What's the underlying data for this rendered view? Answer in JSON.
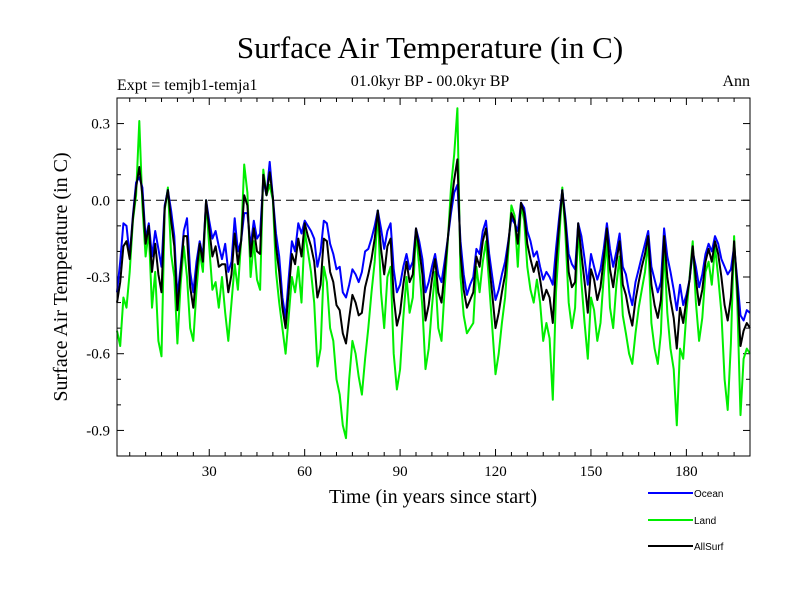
{
  "chart_data": {
    "type": "line",
    "title": "Surface Air Temperature (in C)",
    "subtitle": "01.0kyr BP - 00.0kyr BP",
    "left_label": "Expt = temjb1-temja1",
    "right_label": "Ann",
    "xlabel": "Time (in years since start)",
    "ylabel": "Surface Air Temperature (in C)",
    "xlim": [
      1,
      200
    ],
    "ylim": [
      -1.0,
      0.4
    ],
    "xticks": [
      30,
      60,
      90,
      120,
      150,
      180
    ],
    "xtick_labels": [
      "30",
      "60",
      "90",
      "120",
      "150",
      "180"
    ],
    "yticks": [
      0.3,
      0.0,
      -0.3,
      -0.6,
      -0.9
    ],
    "ytick_labels": [
      "0.3",
      "0.0",
      "-0.3",
      "-0.6",
      "-0.9"
    ],
    "zero_line": true,
    "legend": "bottom-right",
    "series": [
      {
        "name": "Ocean",
        "color": "#0000ff",
        "values": [
          -0.36,
          -0.24,
          -0.09,
          -0.1,
          -0.22,
          -0.06,
          0.07,
          0.09,
          0.05,
          -0.15,
          -0.09,
          -0.22,
          -0.12,
          -0.19,
          -0.26,
          -0.02,
          0.04,
          -0.04,
          -0.14,
          -0.38,
          -0.26,
          -0.12,
          -0.07,
          -0.28,
          -0.36,
          -0.24,
          -0.16,
          -0.22,
          0.0,
          -0.08,
          -0.15,
          -0.12,
          -0.18,
          -0.23,
          -0.17,
          -0.28,
          -0.24,
          -0.07,
          -0.2,
          -0.16,
          -0.05,
          -0.05,
          -0.18,
          -0.08,
          -0.15,
          -0.13,
          0.08,
          0.02,
          0.15,
          0.01,
          -0.13,
          -0.22,
          -0.38,
          -0.46,
          -0.3,
          -0.16,
          -0.2,
          -0.09,
          -0.13,
          -0.08,
          -0.1,
          -0.12,
          -0.15,
          -0.26,
          -0.2,
          -0.08,
          -0.09,
          -0.17,
          -0.21,
          -0.27,
          -0.26,
          -0.36,
          -0.38,
          -0.33,
          -0.27,
          -0.29,
          -0.32,
          -0.28,
          -0.2,
          -0.19,
          -0.15,
          -0.1,
          -0.04,
          -0.11,
          -0.19,
          -0.12,
          -0.09,
          -0.27,
          -0.36,
          -0.33,
          -0.26,
          -0.21,
          -0.27,
          -0.24,
          -0.11,
          -0.16,
          -0.23,
          -0.36,
          -0.32,
          -0.26,
          -0.21,
          -0.29,
          -0.32,
          -0.24,
          -0.15,
          -0.05,
          0.03,
          0.06,
          -0.16,
          -0.29,
          -0.37,
          -0.33,
          -0.3,
          -0.19,
          -0.21,
          -0.12,
          -0.08,
          -0.21,
          -0.3,
          -0.39,
          -0.35,
          -0.29,
          -0.24,
          -0.16,
          -0.07,
          -0.09,
          -0.12,
          -0.01,
          -0.03,
          -0.12,
          -0.16,
          -0.22,
          -0.2,
          -0.26,
          -0.31,
          -0.28,
          -0.3,
          -0.33,
          -0.19,
          -0.07,
          0.04,
          -0.07,
          -0.21,
          -0.25,
          -0.27,
          -0.09,
          -0.14,
          -0.23,
          -0.33,
          -0.21,
          -0.26,
          -0.31,
          -0.27,
          -0.19,
          -0.09,
          -0.19,
          -0.26,
          -0.2,
          -0.13,
          -0.26,
          -0.29,
          -0.36,
          -0.41,
          -0.32,
          -0.27,
          -0.22,
          -0.17,
          -0.12,
          -0.26,
          -0.31,
          -0.36,
          -0.32,
          -0.11,
          -0.22,
          -0.28,
          -0.35,
          -0.43,
          -0.33,
          -0.41,
          -0.37,
          -0.31,
          -0.2,
          -0.26,
          -0.34,
          -0.29,
          -0.21,
          -0.17,
          -0.2,
          -0.14,
          -0.17,
          -0.23,
          -0.26,
          -0.29,
          -0.27,
          -0.18,
          -0.31,
          -0.45,
          -0.47,
          -0.43,
          -0.44
        ]
      },
      {
        "name": "Land",
        "color": "#00ee00",
        "values": [
          -0.51,
          -0.57,
          -0.38,
          -0.42,
          -0.28,
          -0.08,
          0.02,
          0.31,
          -0.02,
          -0.22,
          -0.12,
          -0.42,
          -0.28,
          -0.55,
          -0.61,
          -0.04,
          0.05,
          -0.21,
          -0.3,
          -0.56,
          -0.33,
          -0.18,
          -0.3,
          -0.5,
          -0.55,
          -0.35,
          -0.2,
          -0.28,
          0.0,
          -0.18,
          -0.35,
          -0.32,
          -0.42,
          -0.3,
          -0.44,
          -0.55,
          -0.4,
          -0.25,
          -0.35,
          -0.16,
          0.14,
          0.03,
          -0.3,
          -0.16,
          -0.31,
          -0.35,
          0.12,
          0.02,
          0.06,
          0.0,
          -0.28,
          -0.4,
          -0.5,
          -0.6,
          -0.45,
          -0.3,
          -0.36,
          -0.26,
          -0.4,
          -0.12,
          -0.2,
          -0.28,
          -0.4,
          -0.65,
          -0.58,
          -0.26,
          -0.32,
          -0.5,
          -0.55,
          -0.7,
          -0.76,
          -0.88,
          -0.93,
          -0.7,
          -0.55,
          -0.6,
          -0.69,
          -0.76,
          -0.62,
          -0.5,
          -0.36,
          -0.24,
          -0.04,
          -0.36,
          -0.5,
          -0.3,
          -0.26,
          -0.6,
          -0.74,
          -0.66,
          -0.46,
          -0.3,
          -0.44,
          -0.38,
          -0.12,
          -0.26,
          -0.42,
          -0.66,
          -0.58,
          -0.42,
          -0.28,
          -0.5,
          -0.55,
          -0.35,
          -0.16,
          0.05,
          0.18,
          0.36,
          -0.3,
          -0.45,
          -0.52,
          -0.5,
          -0.48,
          -0.26,
          -0.36,
          -0.24,
          -0.16,
          -0.33,
          -0.5,
          -0.68,
          -0.6,
          -0.48,
          -0.38,
          -0.2,
          -0.02,
          -0.06,
          -0.26,
          -0.02,
          -0.08,
          -0.26,
          -0.35,
          -0.4,
          -0.31,
          -0.4,
          -0.55,
          -0.48,
          -0.54,
          -0.78,
          -0.36,
          -0.16,
          0.05,
          -0.14,
          -0.4,
          -0.5,
          -0.42,
          -0.1,
          -0.32,
          -0.48,
          -0.62,
          -0.38,
          -0.43,
          -0.55,
          -0.48,
          -0.3,
          -0.16,
          -0.42,
          -0.5,
          -0.33,
          -0.22,
          -0.45,
          -0.52,
          -0.6,
          -0.64,
          -0.52,
          -0.42,
          -0.35,
          -0.28,
          -0.16,
          -0.48,
          -0.58,
          -0.64,
          -0.52,
          -0.18,
          -0.44,
          -0.58,
          -0.66,
          -0.88,
          -0.58,
          -0.62,
          -0.44,
          -0.3,
          -0.16,
          -0.4,
          -0.55,
          -0.46,
          -0.28,
          -0.24,
          -0.33,
          -0.18,
          -0.3,
          -0.44,
          -0.7,
          -0.82,
          -0.56,
          -0.14,
          -0.4,
          -0.84,
          -0.62,
          -0.58,
          -0.6
        ]
      },
      {
        "name": "AllSurf",
        "color": "#000000",
        "values": [
          -0.4,
          -0.32,
          -0.18,
          -0.16,
          -0.23,
          -0.07,
          0.05,
          0.13,
          0.02,
          -0.17,
          -0.1,
          -0.28,
          -0.17,
          -0.29,
          -0.36,
          -0.03,
          0.04,
          -0.08,
          -0.18,
          -0.43,
          -0.28,
          -0.14,
          -0.14,
          -0.34,
          -0.42,
          -0.28,
          -0.17,
          -0.24,
          0.0,
          -0.11,
          -0.22,
          -0.18,
          -0.26,
          -0.25,
          -0.25,
          -0.36,
          -0.29,
          -0.13,
          -0.25,
          -0.16,
          0.02,
          -0.02,
          -0.22,
          -0.11,
          -0.2,
          -0.21,
          0.1,
          0.02,
          0.11,
          0.01,
          -0.18,
          -0.28,
          -0.42,
          -0.5,
          -0.35,
          -0.21,
          -0.25,
          -0.15,
          -0.22,
          -0.09,
          -0.14,
          -0.18,
          -0.24,
          -0.38,
          -0.33,
          -0.15,
          -0.16,
          -0.28,
          -0.32,
          -0.41,
          -0.43,
          -0.52,
          -0.56,
          -0.46,
          -0.37,
          -0.4,
          -0.45,
          -0.44,
          -0.34,
          -0.29,
          -0.23,
          -0.15,
          -0.04,
          -0.19,
          -0.29,
          -0.18,
          -0.15,
          -0.38,
          -0.49,
          -0.44,
          -0.33,
          -0.24,
          -0.32,
          -0.29,
          -0.11,
          -0.19,
          -0.29,
          -0.47,
          -0.41,
          -0.31,
          -0.23,
          -0.36,
          -0.4,
          -0.28,
          -0.15,
          -0.02,
          0.08,
          0.16,
          -0.21,
          -0.35,
          -0.42,
          -0.39,
          -0.36,
          -0.22,
          -0.26,
          -0.16,
          -0.11,
          -0.25,
          -0.37,
          -0.5,
          -0.44,
          -0.36,
          -0.29,
          -0.17,
          -0.05,
          -0.08,
          -0.17,
          -0.01,
          -0.05,
          -0.17,
          -0.23,
          -0.28,
          -0.24,
          -0.31,
          -0.39,
          -0.35,
          -0.38,
          -0.48,
          -0.25,
          -0.1,
          0.04,
          -0.09,
          -0.28,
          -0.34,
          -0.32,
          -0.09,
          -0.21,
          -0.32,
          -0.44,
          -0.27,
          -0.31,
          -0.39,
          -0.34,
          -0.23,
          -0.11,
          -0.27,
          -0.34,
          -0.24,
          -0.16,
          -0.33,
          -0.37,
          -0.44,
          -0.49,
          -0.39,
          -0.32,
          -0.26,
          -0.21,
          -0.14,
          -0.33,
          -0.41,
          -0.46,
          -0.39,
          -0.14,
          -0.3,
          -0.39,
          -0.46,
          -0.58,
          -0.42,
          -0.48,
          -0.39,
          -0.31,
          -0.18,
          -0.31,
          -0.41,
          -0.35,
          -0.24,
          -0.19,
          -0.24,
          -0.16,
          -0.21,
          -0.3,
          -0.41,
          -0.47,
          -0.38,
          -0.16,
          -0.34,
          -0.57,
          -0.51,
          -0.48,
          -0.5
        ]
      }
    ]
  }
}
